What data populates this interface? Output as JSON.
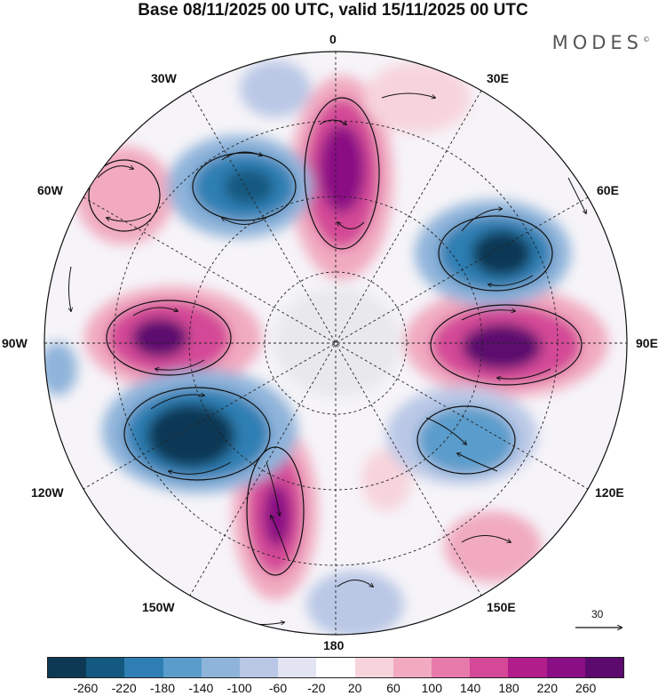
{
  "header": {
    "title": "Base 08/11/2025 00 UTC, valid 15/11/2025 00 UTC",
    "brand": "MODES",
    "brand_mark": "©"
  },
  "map": {
    "projection": "south-polar-stereographic",
    "longitude_labels": {
      "lon_0": "0",
      "lon_30e": "30E",
      "lon_60e": "60E",
      "lon_90e": "90E",
      "lon_120e": "120E",
      "lon_150e": "150E",
      "lon_180": "180",
      "lon_150w": "150W",
      "lon_120w": "120W",
      "lon_90w": "90W",
      "lon_60w": "60W",
      "lon_30w": "30W"
    },
    "wind_reference": {
      "value": "30"
    }
  },
  "colorbar": {
    "colors": [
      "#0e3954",
      "#14597f",
      "#2f7fb4",
      "#5a9ccb",
      "#8fb4da",
      "#bac8e6",
      "#e2e4f2",
      "#ffffff",
      "#f7d4dc",
      "#f1aac0",
      "#e879ab",
      "#d44897",
      "#b21d8c",
      "#8a0f84",
      "#5c0a6e"
    ],
    "ticks": [
      "-260",
      "-220",
      "-180",
      "-140",
      "-100",
      "-60",
      "-20",
      "20",
      "60",
      "100",
      "140",
      "180",
      "220",
      "260"
    ]
  }
}
